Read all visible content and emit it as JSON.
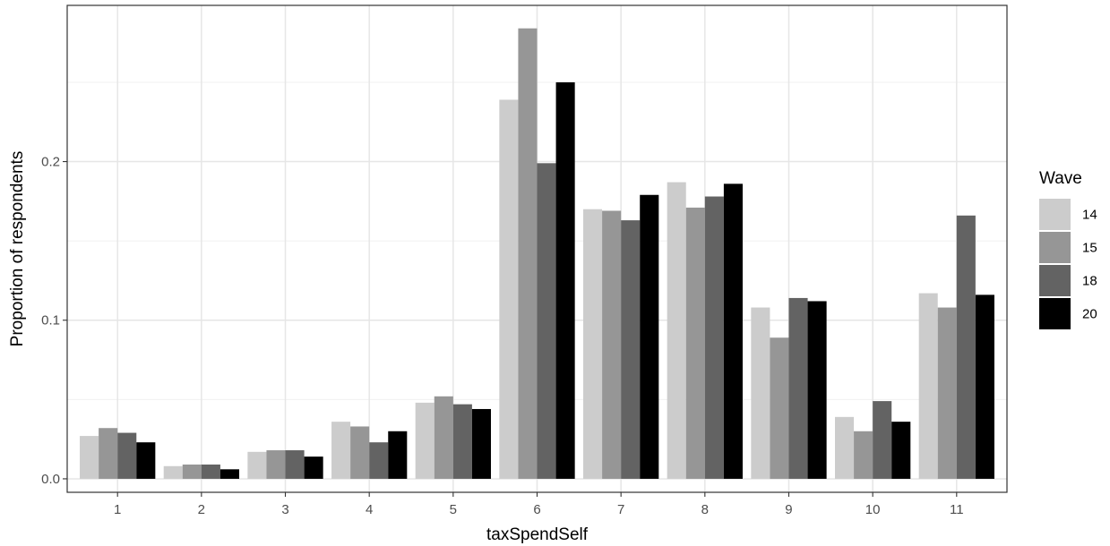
{
  "chart_data": {
    "type": "bar",
    "xlabel": "taxSpendSelf",
    "ylabel": "Proportion of respondents",
    "categories": [
      "1",
      "2",
      "3",
      "4",
      "5",
      "6",
      "7",
      "8",
      "9",
      "10",
      "11"
    ],
    "ylim": [
      -0.0085,
      0.2985
    ],
    "yticks": [
      0.0,
      0.1,
      0.2
    ],
    "ytick_labels": [
      "0.0",
      "0.1",
      "0.2"
    ],
    "grid": true,
    "legend": {
      "title": "Wave",
      "placement": "right"
    },
    "series": [
      {
        "name": "14",
        "color": "#cccccc",
        "values": [
          0.027,
          0.008,
          0.017,
          0.036,
          0.048,
          0.239,
          0.17,
          0.187,
          0.108,
          0.039,
          0.117
        ]
      },
      {
        "name": "15",
        "color": "#969696",
        "values": [
          0.032,
          0.009,
          0.018,
          0.033,
          0.052,
          0.284,
          0.169,
          0.171,
          0.089,
          0.03,
          0.108
        ]
      },
      {
        "name": "18",
        "color": "#636363",
        "values": [
          0.029,
          0.009,
          0.018,
          0.023,
          0.047,
          0.199,
          0.163,
          0.178,
          0.114,
          0.049,
          0.166
        ]
      },
      {
        "name": "20",
        "color": "#000000",
        "values": [
          0.023,
          0.006,
          0.014,
          0.03,
          0.044,
          0.25,
          0.179,
          0.186,
          0.112,
          0.036,
          0.116
        ]
      }
    ]
  }
}
